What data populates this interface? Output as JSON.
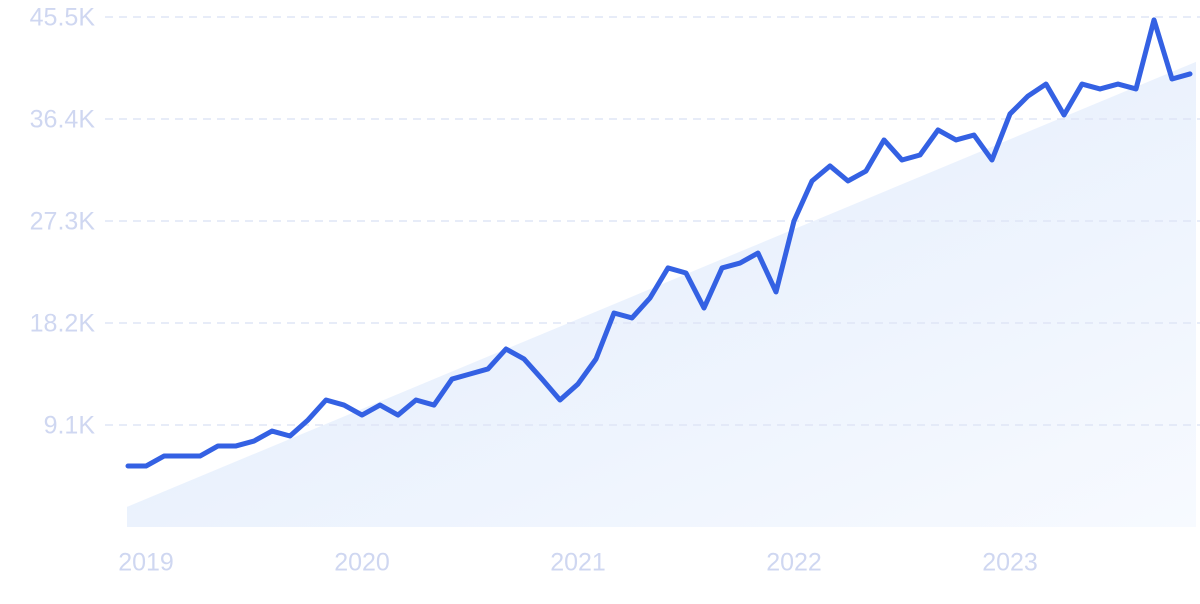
{
  "chart_data": {
    "type": "line",
    "categories": [
      null,
      "2019",
      null,
      null,
      null,
      null,
      null,
      null,
      null,
      null,
      null,
      null,
      null,
      "2020",
      null,
      null,
      null,
      null,
      null,
      null,
      null,
      null,
      null,
      null,
      null,
      "2021",
      null,
      null,
      null,
      null,
      null,
      null,
      null,
      null,
      null,
      null,
      null,
      "2022",
      null,
      null,
      null,
      null,
      null,
      null,
      null,
      null,
      null,
      null,
      null,
      "2023",
      null,
      null,
      null,
      null,
      null,
      null,
      null,
      null,
      null,
      null
    ],
    "series": [
      {
        "color": "#3461e3",
        "values": [
          5440,
          5440,
          6330,
          6330,
          6330,
          7230,
          7230,
          7670,
          8560,
          8120,
          9550,
          11330,
          10880,
          9990,
          10880,
          9990,
          11330,
          10880,
          13200,
          13650,
          14100,
          15880,
          14990,
          13200,
          11330,
          12760,
          14990,
          19090,
          18650,
          20430,
          23110,
          22660,
          19540,
          23110,
          23550,
          24440,
          20970,
          27300,
          30870,
          32210,
          30870,
          31760,
          34530,
          32740,
          33190,
          35420,
          34530,
          34970,
          32740,
          36850,
          38450,
          39520,
          36760,
          39520,
          39080,
          39520,
          39080,
          45240,
          39970,
          40420
        ]
      }
    ],
    "trend": [
      1800,
      41500
    ],
    "ylim": [
      0,
      45500
    ],
    "yticks": [
      {
        "value": 9100,
        "label": "9.1K"
      },
      {
        "value": 18200,
        "label": "18.2K"
      },
      {
        "value": 27300,
        "label": "27.3K"
      },
      {
        "value": 36400,
        "label": "36.4K"
      },
      {
        "value": 45500,
        "label": "45.5K"
      }
    ],
    "grid": true
  }
}
